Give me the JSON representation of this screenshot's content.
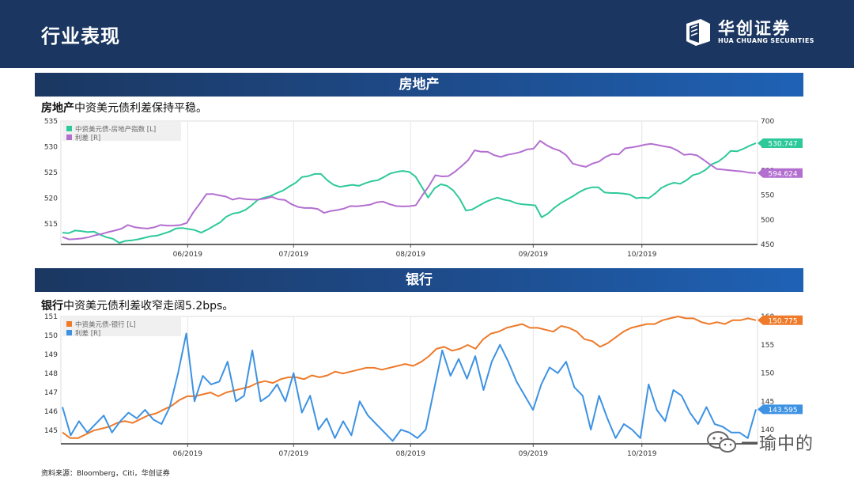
{
  "header": {
    "title": "行业表现",
    "logo_name": "华创证券",
    "logo_sub": "HUA CHUANG SECURITIES"
  },
  "sections": [
    {
      "band": "房地产",
      "caption_bold": "房地产",
      "caption_rest": "中资美元债利差保持平稳。"
    },
    {
      "band": "银行",
      "caption_bold": "银行",
      "caption_rest": "中资美元债利差收窄走阔5.2bps。"
    }
  ],
  "source": "资料来源：Bloomberg，Citi，华创证券",
  "watermark": "一瑜中的",
  "colors": {
    "green": "#2ec99a",
    "purple": "#b36fd0",
    "orange": "#ee7a2a",
    "blue": "#3d92e3",
    "navy": "#1b3761"
  },
  "chart_data": [
    {
      "type": "line",
      "x_labels": [
        "06/2019",
        "07/2019",
        "08/2019",
        "09/2019",
        "10/2019"
      ],
      "x_label_positions": [
        0.182,
        0.334,
        0.502,
        0.678,
        0.834
      ],
      "left_axis": {
        "ticks": [
          515,
          520,
          525,
          530,
          535
        ],
        "ylim": [
          511,
          535
        ]
      },
      "right_axis": {
        "ticks": [
          450,
          500,
          550,
          600,
          650,
          700
        ],
        "ylim": [
          450,
          700
        ]
      },
      "series": [
        {
          "name": "中资美元债-房地产指数 [L]",
          "axis": "left",
          "color": "#2ec99a",
          "last_label": "530.747",
          "values": [
            513.3,
            513.2,
            513.7,
            513.6,
            513.4,
            513.5,
            512.9,
            512.4,
            512.1,
            511.3,
            511.7,
            511.8,
            512.0,
            512.3,
            512.6,
            512.7,
            513.1,
            513.5,
            514.1,
            514.2,
            514.0,
            513.8,
            513.3,
            513.9,
            514.6,
            515.3,
            516.4,
            517.0,
            517.2,
            517.7,
            518.6,
            519.7,
            520.1,
            520.4,
            521.0,
            521.5,
            522.3,
            523.0,
            524.1,
            524.3,
            524.7,
            524.7,
            523.5,
            522.6,
            522.2,
            522.4,
            522.6,
            522.4,
            522.9,
            523.3,
            523.5,
            524.1,
            524.8,
            525.1,
            525.3,
            525.1,
            524.2,
            522.2,
            520.1,
            521.9,
            522.7,
            522.4,
            521.5,
            519.9,
            517.6,
            517.8,
            518.5,
            519.2,
            519.7,
            520.1,
            519.7,
            519.5,
            519.0,
            518.8,
            518.7,
            518.6,
            516.3,
            517.0,
            518.1,
            519.0,
            519.7,
            520.4,
            521.2,
            521.8,
            522.1,
            522.1,
            521.1,
            521.0,
            521.0,
            520.9,
            520.7,
            520.0,
            520.1,
            520.0,
            520.9,
            522.0,
            522.6,
            523.0,
            522.8,
            523.5,
            524.5,
            524.8,
            525.5,
            526.6,
            527.1,
            528.0,
            529.2,
            529.1,
            529.6,
            530.2,
            530.7
          ]
        },
        {
          "name": "利差 [R]",
          "axis": "right",
          "color": "#b36fd0",
          "last_label": "594.624",
          "values": [
            465.0,
            460.3,
            461.0,
            462.2,
            464.7,
            468.6,
            471.3,
            475.0,
            478.2,
            481.9,
            489.4,
            485.1,
            483.4,
            482.2,
            484.6,
            489.4,
            488.0,
            488.3,
            489.3,
            493.6,
            515.2,
            532.9,
            552.0,
            552.3,
            549.4,
            547.0,
            540.7,
            543.9,
            541.8,
            540.8,
            540.8,
            542.9,
            546.4,
            541.3,
            540.1,
            531.6,
            525.9,
            523.9,
            523.9,
            521.9,
            513.9,
            517.8,
            519.7,
            522.6,
            527.7,
            527.3,
            528.7,
            530.5,
            535.2,
            536.7,
            531.6,
            527.8,
            527.1,
            527.6,
            529.3,
            549.4,
            567.9,
            590.2,
            587.9,
            588.5,
            597.5,
            608.6,
            620.6,
            640.7,
            637.9,
            637.7,
            630.7,
            627.2,
            631.5,
            633.9,
            637.2,
            642.5,
            643.9,
            660.0,
            651.1,
            644.4,
            639.9,
            630.7,
            614.0,
            609.9,
            607.2,
            613.8,
            617.8,
            627.3,
            633.0,
            632.2,
            644.7,
            646.6,
            648.8,
            652.1,
            653.8,
            651.3,
            648.7,
            646.4,
            640.3,
            631.6,
            632.9,
            630.4,
            621.4,
            611.7,
            602.9,
            601.6,
            600.1,
            598.8,
            597.8,
            595.4,
            594.6
          ]
        }
      ]
    },
    {
      "type": "line",
      "x_labels": [
        "06/2019",
        "07/2019",
        "08/2019",
        "09/2019",
        "10/2019"
      ],
      "x_label_positions": [
        0.182,
        0.334,
        0.502,
        0.678,
        0.834
      ],
      "left_axis": {
        "ticks": [
          145,
          146,
          147,
          148,
          149,
          150,
          151
        ],
        "ylim": [
          144.3,
          151
        ]
      },
      "right_axis": {
        "ticks": [
          140,
          145,
          150,
          155,
          160
        ],
        "ylim": [
          137.5,
          160
        ]
      },
      "series": [
        {
          "name": "中资美元债-银行 [L]",
          "axis": "left",
          "color": "#ee7a2a",
          "last_label": "150.775",
          "values": [
            144.9,
            144.6,
            144.6,
            144.8,
            145.0,
            145.1,
            145.2,
            145.4,
            145.5,
            145.4,
            145.6,
            145.8,
            145.9,
            146.1,
            146.3,
            146.6,
            146.8,
            146.8,
            146.9,
            147.0,
            146.8,
            147.0,
            147.1,
            147.2,
            147.3,
            147.5,
            147.6,
            147.5,
            147.7,
            147.8,
            147.8,
            147.7,
            147.9,
            147.8,
            147.9,
            148.1,
            148.0,
            148.1,
            148.2,
            148.3,
            148.3,
            148.2,
            148.3,
            148.4,
            148.5,
            148.4,
            148.6,
            148.9,
            149.3,
            149.4,
            149.2,
            149.3,
            149.5,
            149.3,
            149.8,
            150.1,
            150.2,
            150.4,
            150.5,
            150.6,
            150.4,
            150.4,
            150.3,
            150.2,
            150.5,
            150.4,
            150.2,
            149.8,
            149.7,
            149.4,
            149.6,
            149.9,
            150.2,
            150.4,
            150.5,
            150.6,
            150.6,
            150.8,
            150.9,
            151.0,
            150.9,
            150.9,
            150.7,
            150.6,
            150.7,
            150.6,
            150.8,
            150.8,
            150.9,
            150.8
          ]
        },
        {
          "name": "利差 [R]",
          "axis": "right",
          "color": "#3d92e3",
          "last_label": "143.595",
          "values": [
            144.0,
            139.0,
            141.5,
            139.5,
            141.0,
            142.5,
            139.5,
            141.5,
            143.0,
            142.0,
            143.5,
            141.8,
            141.0,
            144.0,
            150.0,
            157.0,
            145.0,
            149.5,
            148.0,
            148.5,
            152.0,
            145.0,
            146.0,
            154.0,
            145.0,
            146.0,
            148.0,
            145.0,
            150.0,
            143.0,
            146.0,
            140.0,
            142.0,
            138.5,
            141.5,
            139.0,
            145.0,
            142.5,
            141.0,
            139.5,
            138.0,
            140.0,
            139.5,
            138.5,
            140.0,
            147.0,
            154.0,
            149.5,
            152.5,
            149.0,
            153.0,
            147.0,
            152.0,
            155.0,
            152.0,
            148.5,
            146.0,
            143.5,
            148.0,
            151.0,
            150.0,
            152.0,
            147.5,
            146.0,
            140.0,
            146.0,
            142.0,
            138.5,
            141.0,
            140.0,
            138.5,
            148.0,
            143.5,
            141.5,
            147.0,
            146.0,
            143.0,
            141.0,
            144.0,
            141.0,
            140.5,
            139.5,
            139.5,
            138.5,
            143.6
          ]
        }
      ]
    }
  ]
}
